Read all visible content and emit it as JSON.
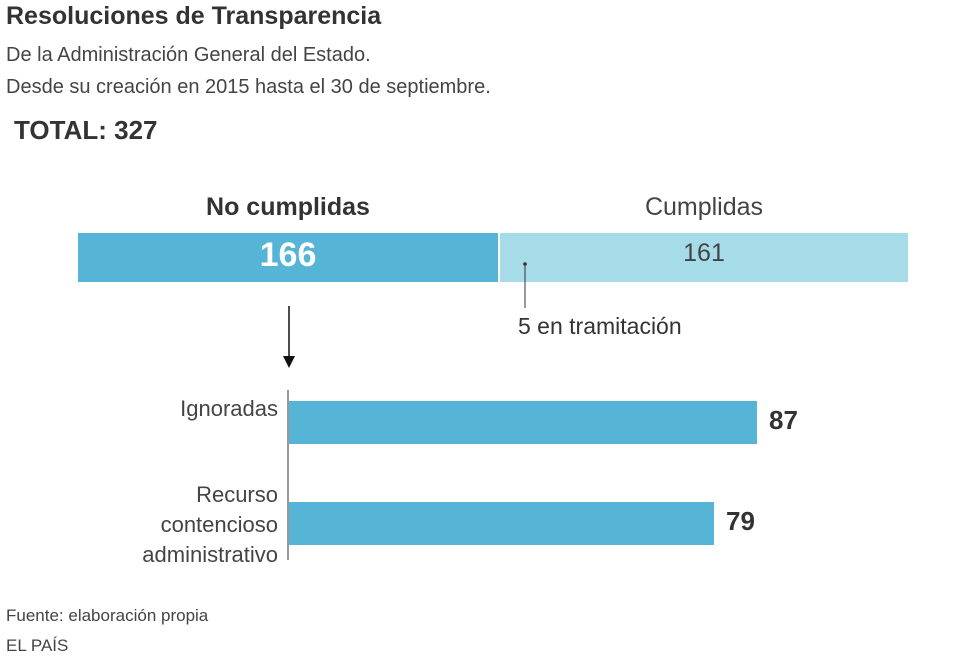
{
  "title": "Resoluciones de Transparencia",
  "subtitle_line1": "De la Administración General del Estado.",
  "subtitle_line2": "Desde su creación en 2015 hasta el 30 de septiembre.",
  "total_label": "TOTAL: 327",
  "chart_data": [
    {
      "type": "bar",
      "orientation": "horizontal-stacked",
      "total": 327,
      "categories": [
        "No cumplidas",
        "Cumplidas"
      ],
      "values": [
        166,
        161
      ],
      "annotation": "5 en tramitación",
      "colors": [
        "#56b5d6",
        "#a5dce8"
      ]
    },
    {
      "type": "bar",
      "orientation": "horizontal",
      "categories": [
        "Ignoradas",
        "Recurso contencioso administrativo"
      ],
      "category_lines": [
        [
          "Ignoradas"
        ],
        [
          "Recurso",
          "contencioso",
          "administrativo"
        ]
      ],
      "values": [
        87,
        79
      ],
      "colors": [
        "#56b5d6"
      ]
    }
  ],
  "source": "Fuente: elaboración propia",
  "publisher": "EL PAÍS"
}
